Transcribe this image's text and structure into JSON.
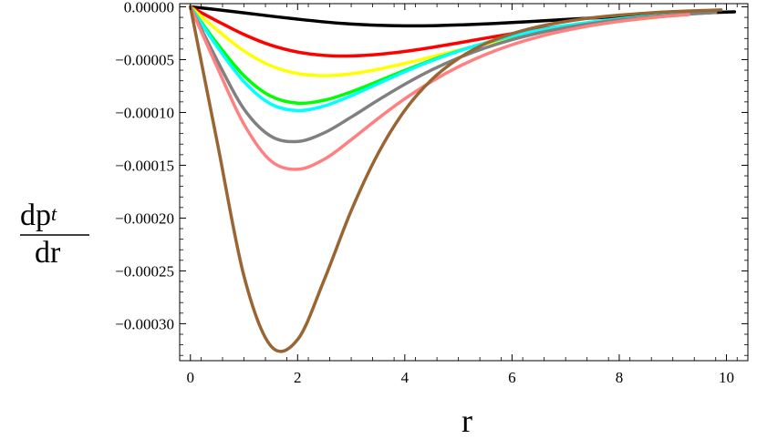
{
  "chart_data": {
    "type": "line",
    "title": "",
    "xlabel": "r",
    "ylabel": {
      "numerator": "dp",
      "subscript": "t",
      "denominator": "dr"
    },
    "xlim": [
      -0.2,
      10.4
    ],
    "ylim": [
      -0.000335,
      3e-06
    ],
    "xticks": {
      "values": [
        0,
        2,
        4,
        6,
        8,
        10
      ],
      "labels": [
        "0",
        "2",
        "4",
        "6",
        "8",
        "10"
      ]
    },
    "yticks": {
      "values": [
        0,
        -5e-05,
        -0.0001,
        -0.00015,
        -0.0002,
        -0.00025,
        -0.0003
      ],
      "labels": [
        "0.00000",
        "−0.00005",
        "−0.00010",
        "−0.00015",
        "−0.00020",
        "−0.00025",
        "−0.00030"
      ]
    },
    "grid": false,
    "x": [
      0,
      0.5,
      1,
      1.5,
      2,
      2.5,
      3,
      3.5,
      4,
      4.5,
      5,
      5.5,
      6,
      6.5,
      7,
      7.5,
      8,
      8.5,
      9,
      9.5,
      10
    ],
    "series": [
      {
        "color": "#000000",
        "x_end": 10.15,
        "values": [
          0,
          -2.7e-06,
          -5.7e-06,
          -8.8e-06,
          -1.17e-05,
          -1.43e-05,
          -1.63e-05,
          -1.75e-05,
          -1.8e-05,
          -1.79e-05,
          -1.72e-05,
          -1.62e-05,
          -1.49e-05,
          -1.35e-05,
          -1.2e-05,
          -1.06e-05,
          -9.2e-06,
          -7.9e-06,
          -6.8e-06,
          -5.8e-06,
          -5e-06
        ]
      },
      {
        "color": "#ff0000",
        "x_end": 8.9,
        "values": [
          0,
          -1.35e-05,
          -2.62e-05,
          -3.63e-05,
          -4.28e-05,
          -4.6e-05,
          -4.65e-05,
          -4.51e-05,
          -4.23e-05,
          -3.85e-05,
          -3.42e-05,
          -2.97e-05,
          -2.54e-05,
          -2.14e-05,
          -1.79e-05,
          -1.48e-05,
          -1.22e-05,
          -1e-05,
          -8.2e-06,
          -6.7e-06,
          -5.4e-06
        ]
      },
      {
        "color": "#ffff00",
        "x_end": 8.7,
        "values": [
          0,
          -2.2e-05,
          -4.18e-05,
          -5.58e-05,
          -6.32e-05,
          -6.52e-05,
          -6.34e-05,
          -5.92e-05,
          -5.36e-05,
          -4.74e-05,
          -4.11e-05,
          -3.51e-05,
          -2.95e-05,
          -2.46e-05,
          -2.03e-05,
          -1.67e-05,
          -1.36e-05,
          -1.1e-05,
          -8.9e-06,
          -7.2e-06,
          -5.8e-06
        ]
      },
      {
        "color": "#00ff00",
        "x_end": 9.7,
        "values": [
          0,
          -3.48e-05,
          -6.52e-05,
          -8.46e-05,
          -9.12e-05,
          -8.84e-05,
          -8.05e-05,
          -7.05e-05,
          -6.02e-05,
          -5.05e-05,
          -4.18e-05,
          -3.43e-05,
          -2.79e-05,
          -2.27e-05,
          -1.83e-05,
          -1.48e-05,
          -1.19e-05,
          -9.6e-06,
          -7.7e-06,
          -6.2e-06,
          -4.9e-06
        ]
      },
      {
        "color": "#00ffff",
        "x_end": 9.4,
        "values": [
          0,
          -3.78e-05,
          -7.09e-05,
          -9.2e-05,
          -9.82e-05,
          -9.38e-05,
          -8.42e-05,
          -7.28e-05,
          -6.15e-05,
          -5.11e-05,
          -4.2e-05,
          -3.42e-05,
          -2.76e-05,
          -2.22e-05,
          -1.78e-05,
          -1.43e-05,
          -1.14e-05,
          -9.1e-06,
          -7.3e-06,
          -5.8e-06,
          -4.6e-06
        ]
      },
      {
        "color": "#808080",
        "x_end": 9.8,
        "values": [
          0,
          -5.08e-05,
          -9.68e-05,
          -0.0001225,
          -0.0001275,
          -0.0001192,
          -0.0001044,
          -8.84e-05,
          -7.33e-05,
          -5.98e-05,
          -4.84e-05,
          -3.89e-05,
          -3.11e-05,
          -2.48e-05,
          -1.97e-05,
          -1.57e-05,
          -1.24e-05,
          -9.8e-06,
          -7.8e-06,
          -6.2e-06,
          -4.9e-06
        ]
      },
      {
        "color": "#ff8080",
        "x_end": 9.3,
        "values": [
          0,
          -5.72e-05,
          -0.0001112,
          -0.0001458,
          -0.0001538,
          -0.0001442,
          -0.0001258,
          -0.0001058,
          -8.71e-05,
          -7.07e-05,
          -5.68e-05,
          -4.53e-05,
          -3.59e-05,
          -2.84e-05,
          -2.24e-05,
          -1.76e-05,
          -1.38e-05,
          -1.08e-05,
          -8.5e-06,
          -6.6e-06,
          -5.2e-06
        ]
      },
      {
        "color": "#996633",
        "x_end": 9.9,
        "values": [
          0,
          -0.000128,
          -0.000255,
          -0.000321,
          -0.000315,
          -0.000258,
          -0.000193,
          -0.000139,
          -9.8e-05,
          -6.9e-05,
          -4.9e-05,
          -3.5e-05,
          -2.55e-05,
          -1.87e-05,
          -1.39e-05,
          -1.04e-05,
          -7.9e-06,
          -6e-06,
          -4.6e-06,
          -3.6e-06,
          -2.8e-06
        ]
      }
    ]
  }
}
